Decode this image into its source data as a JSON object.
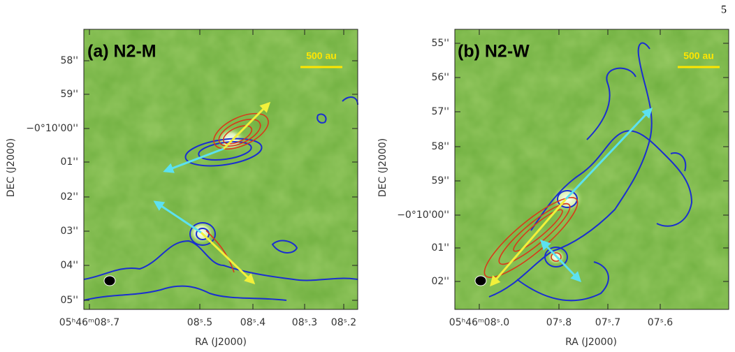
{
  "page_number": "5",
  "panels": [
    {
      "label": "(a) N2-M",
      "scale_bar": "500 au",
      "y_axis": {
        "title": "DEC (J2000)",
        "ticks": [
          "58''",
          "59''",
          "−0°10'00''",
          "01''",
          "02''",
          "03''",
          "04''",
          "05''"
        ]
      },
      "x_axis": {
        "title": "RA (J2000)",
        "ticks": [
          "05ʰ46ᵐ08ˢ.7",
          "08ˢ.5",
          "08ˢ.4",
          "08ˢ.3",
          "08ˢ.2"
        ]
      }
    },
    {
      "label": "(b) N2-W",
      "scale_bar": "500 au",
      "y_axis": {
        "title": "DEC (J2000)",
        "ticks": [
          "55''",
          "56''",
          "57''",
          "58''",
          "59''",
          "−0°10'00''",
          "01''",
          "02''"
        ]
      },
      "x_axis": {
        "title": "RA (J2000)",
        "ticks": [
          "05ʰ46ᵐ08ˢ.0",
          "07ˢ.8",
          "07ˢ.7",
          "07ˢ.6"
        ]
      }
    }
  ]
}
